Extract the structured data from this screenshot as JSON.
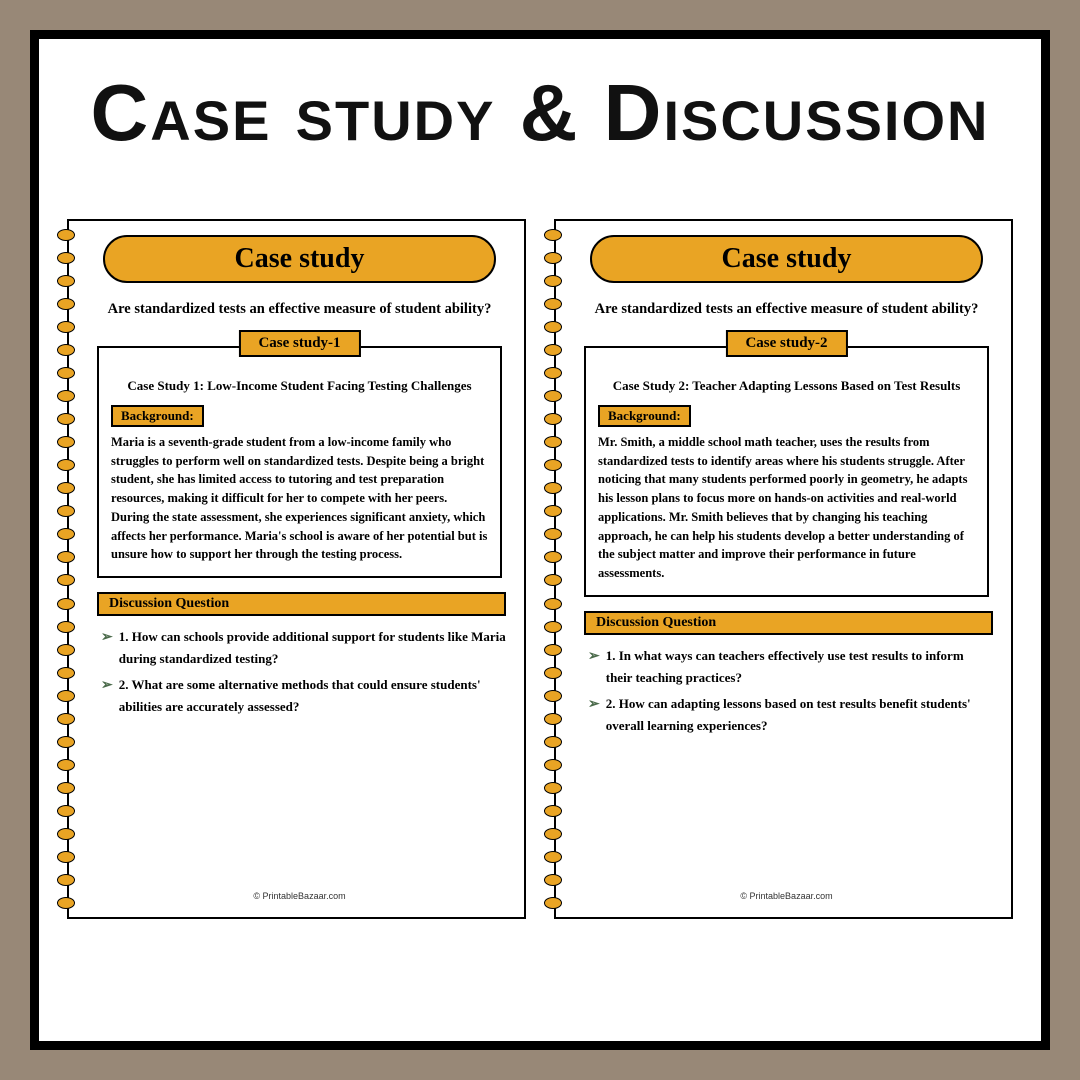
{
  "title": "Case study & Discussion",
  "colors": {
    "background": "#988877",
    "page_bg": "#ffffff",
    "accent": "#e9a424",
    "border": "#000000",
    "bullet": "#4a6a4a"
  },
  "pages": [
    {
      "header": "Case study",
      "question": "Are standardized tests an effective measure of student ability?",
      "tab": "Case study-1",
      "case_title": "Case Study 1: Low-Income Student Facing Testing Challenges",
      "bg_label": "Background:",
      "body": "Maria is a seventh-grade student from a low-income family who struggles to perform well on standardized tests. Despite being a bright student, she has limited access to tutoring and test preparation resources, making it difficult for her to compete with her peers. During the state assessment, she experiences significant anxiety, which affects her performance. Maria's school is aware of her potential but is unsure how to support her through the testing process.",
      "disc_label": "Discussion Question",
      "q1": "1. How can schools provide additional support for students like Maria during standardized testing?",
      "q2": "2. What are some alternative methods that could ensure students' abilities are accurately assessed?",
      "footer": "© PrintableBazaar.com"
    },
    {
      "header": "Case study",
      "question": "Are standardized tests an effective measure of student ability?",
      "tab": "Case study-2",
      "case_title": "Case Study 2: Teacher Adapting Lessons Based on Test Results",
      "bg_label": "Background:",
      "body": "Mr. Smith, a middle school math teacher, uses the results from standardized tests to identify areas where his students struggle. After noticing that many students performed poorly in geometry, he adapts his lesson plans to focus more on hands-on activities and real-world applications. Mr. Smith believes that by changing his teaching approach, he can help his students develop a better understanding of the subject matter and improve their performance in future assessments.",
      "disc_label": "Discussion Question",
      "q1": "1. In what ways can teachers effectively use test results to inform their teaching practices?",
      "q2": "2. How can adapting lessons based on test results benefit students' overall learning experiences?",
      "footer": "© PrintableBazaar.com"
    }
  ]
}
